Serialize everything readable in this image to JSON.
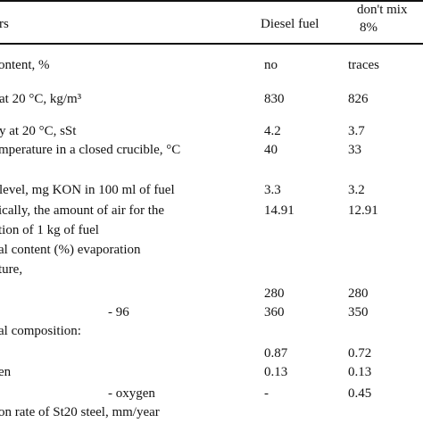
{
  "header": {
    "col1": "rs",
    "col2": "Diesel fuel",
    "col3_line1": "don't mix",
    "col3_line2": "8%"
  },
  "rows": [
    {
      "label": "ontent, %",
      "diesel": "no",
      "mix": "traces"
    },
    {
      "label": "at 20 °C, kg/m³",
      "diesel": "830",
      "mix": "826"
    },
    {
      "label": "y at 20 °C, sSt",
      "diesel": "4.2",
      "mix": "3.7"
    },
    {
      "label": "mperature in a closed crucible, °C",
      "diesel": "40",
      "mix": "33"
    },
    {
      "label": "level, mg KON in 100 ml of fuel",
      "diesel": "3.3",
      "mix": "3.2"
    },
    {
      "label": "ically, the amount of air for the",
      "diesel": "14.91",
      "mix": "12.91"
    },
    {
      "label": "tion of 1 kg of fuel",
      "diesel": "",
      "mix": ""
    },
    {
      "label": "al content (%) evaporation",
      "diesel": "",
      "mix": ""
    },
    {
      "label": "ture,",
      "diesel": "",
      "mix": ""
    },
    {
      "label": "",
      "diesel": "280",
      "mix": "280"
    },
    {
      "label": "- 96",
      "diesel": "360",
      "mix": "350"
    },
    {
      "label": "al composition:",
      "diesel": "",
      "mix": ""
    },
    {
      "label": "",
      "diesel": "0.87",
      "mix": "0.72"
    },
    {
      "label": "en",
      "diesel": "0.13",
      "mix": "0.13"
    },
    {
      "label": "- oxygen",
      "diesel": "-",
      "mix": "0.45"
    },
    {
      "label": "on rate of St20 steel, mm/year",
      "diesel": "",
      "mix": ""
    }
  ]
}
